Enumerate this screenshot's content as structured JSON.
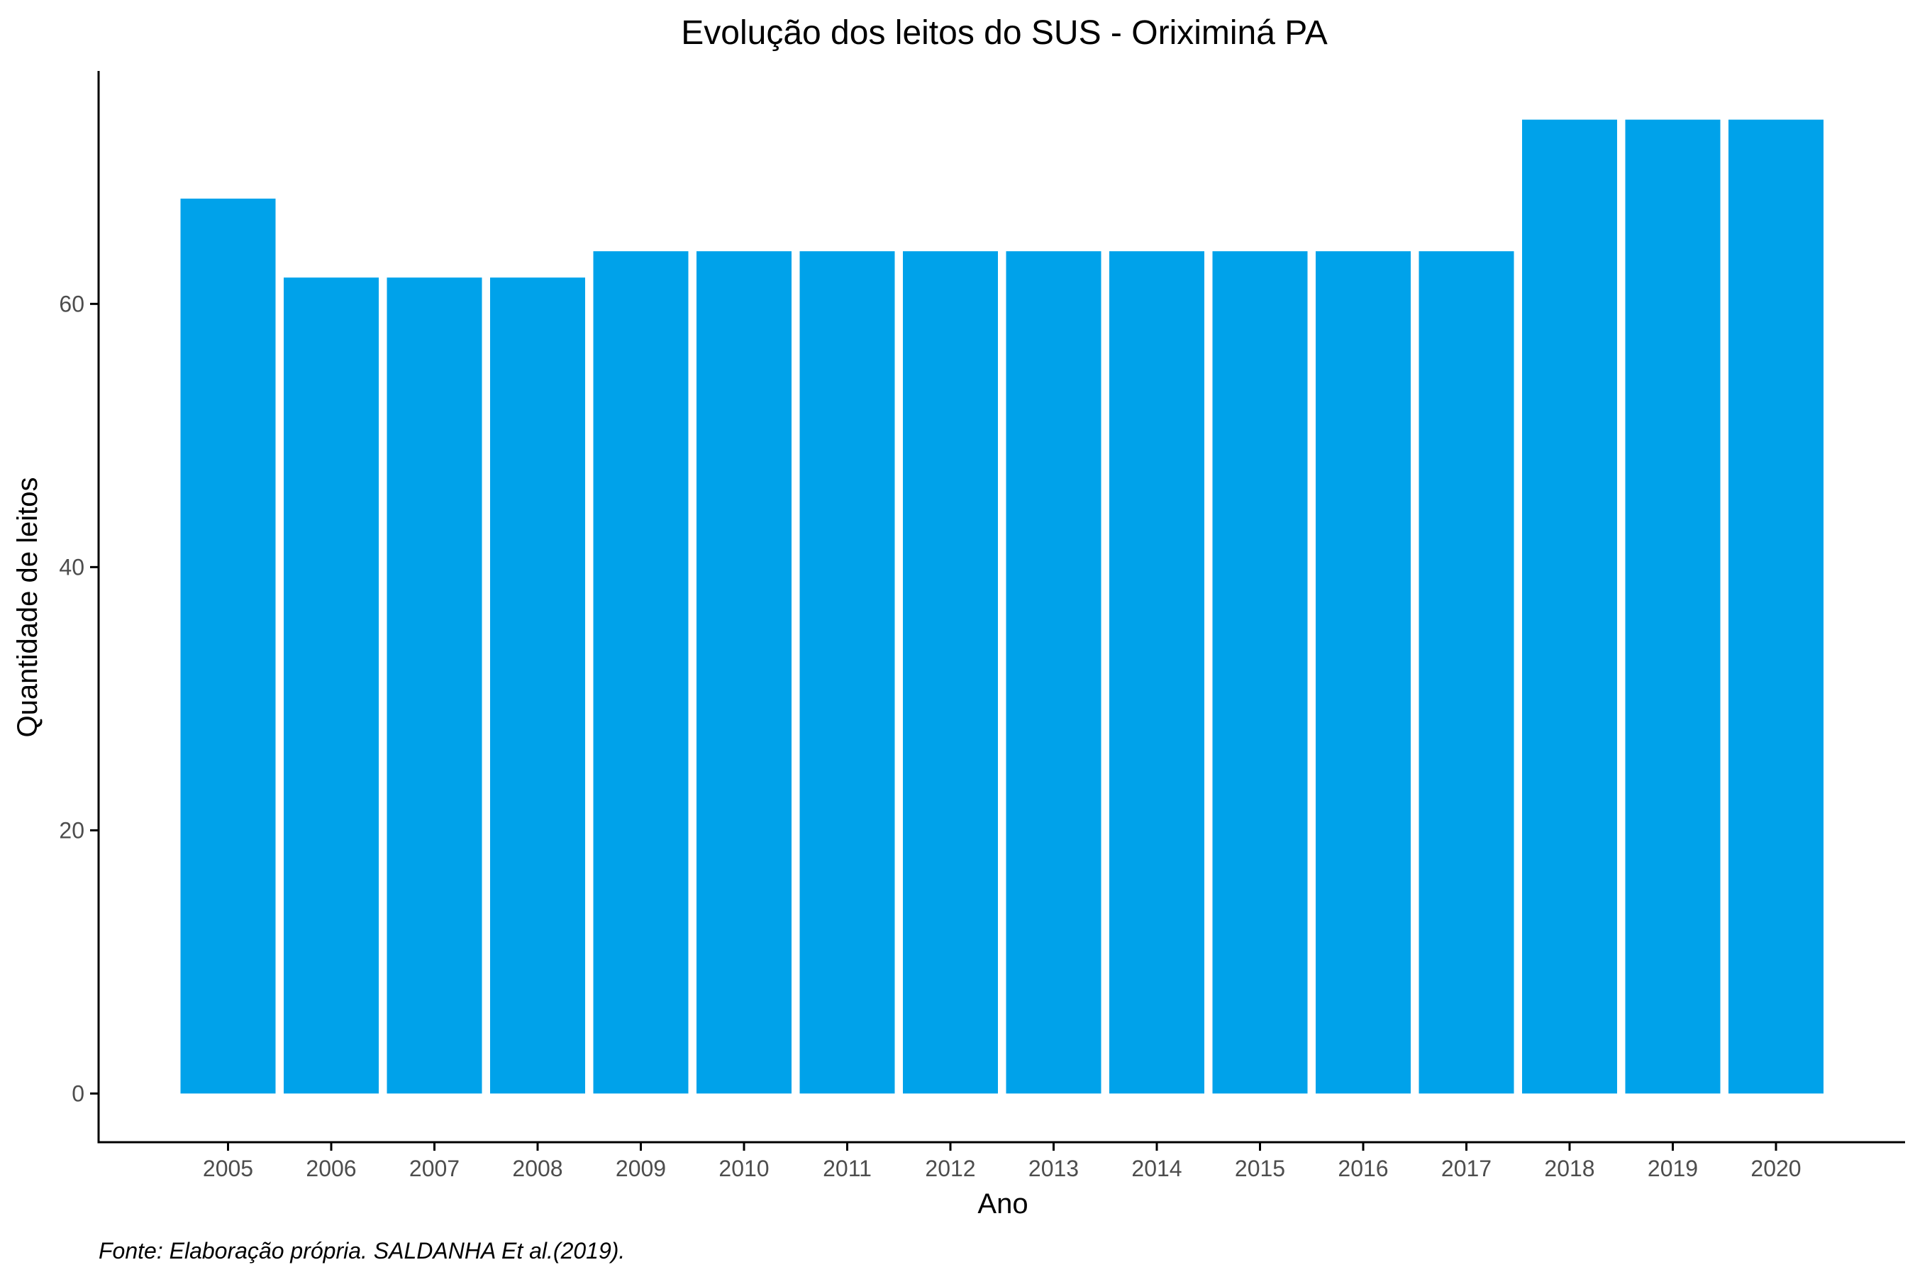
{
  "chart_data": {
    "type": "bar",
    "title": "Evolução dos leitos do SUS -  Oriximiná PA",
    "xlabel": "Ano",
    "ylabel": "Quantidade de leitos",
    "caption": "Fonte: Elaboração própria. SALDANHA Et al.(2019).",
    "categories": [
      "2005",
      "2006",
      "2007",
      "2008",
      "2009",
      "2010",
      "2011",
      "2012",
      "2013",
      "2014",
      "2015",
      "2016",
      "2017",
      "2018",
      "2019",
      "2020"
    ],
    "values": [
      68,
      62,
      62,
      62,
      64,
      64,
      64,
      64,
      64,
      64,
      64,
      64,
      64,
      74,
      74,
      74
    ],
    "yticks": [
      "0",
      "20",
      "40",
      "60"
    ],
    "ylim": [
      -3.7,
      77.7
    ],
    "grid": false,
    "legend": "none",
    "bar_color": "#00A2EA",
    "axis_color": "#000000"
  }
}
